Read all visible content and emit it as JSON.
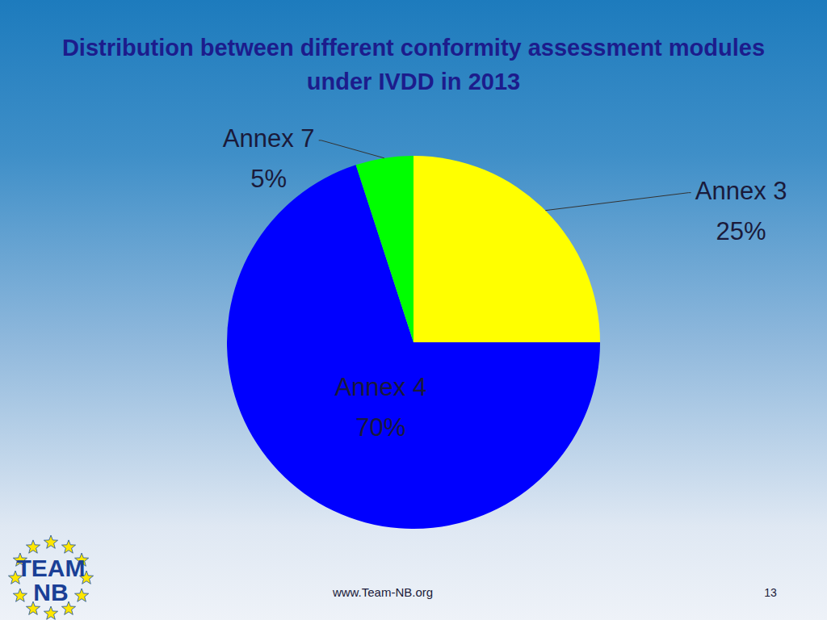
{
  "chart_data": {
    "type": "pie",
    "title": "Distribution between different conformity assessment modules under IVDD  in 2013",
    "categories": [
      "Annex 3",
      "Annex 4",
      "Annex 7"
    ],
    "values": [
      25,
      70,
      5
    ],
    "value_labels": [
      "25%",
      "70%",
      "5%"
    ],
    "colors": [
      "#ffff00",
      "#0000ff",
      "#00ff00"
    ],
    "data_labels": true
  },
  "footer": {
    "url": "www.Team-NB.org",
    "page": 13,
    "logo": [
      "TEAM",
      "NB"
    ]
  }
}
